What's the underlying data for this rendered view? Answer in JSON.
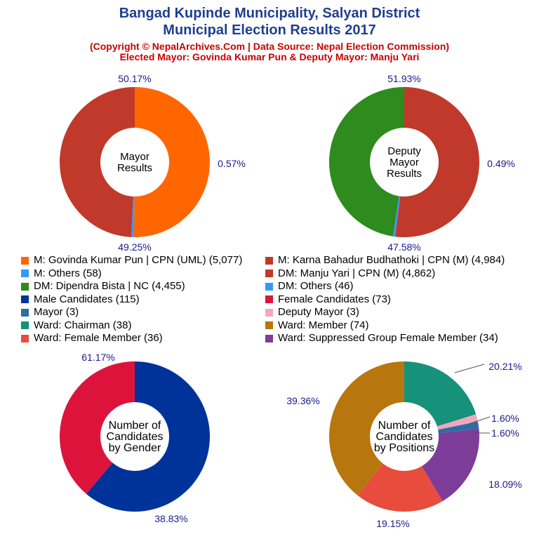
{
  "header": {
    "title_line1": "Bangad Kupinde Municipality, Salyan District",
    "title_line2": "Municipal Election Results 2017",
    "copyright": "(Copyright © NepalArchives.Com | Data Source: Nepal Election Commission)",
    "elected": "Elected Mayor: Govinda Kumar Pun & Deputy Mayor: Manju Yari"
  },
  "legend": [
    {
      "label": "M: Govinda Kumar Pun | CPN (UML) (5,077)",
      "color": "#ff6600"
    },
    {
      "label": "M: Karna Bahadur Budhathoki | CPN (M) (4,984)",
      "color": "#c0392b"
    },
    {
      "label": "M: Others (58)",
      "color": "#3399ff"
    },
    {
      "label": "DM: Manju Yari | CPN (M) (4,862)",
      "color": "#c0392b"
    },
    {
      "label": "DM: Dipendra Bista | NC (4,455)",
      "color": "#2e8b1e"
    },
    {
      "label": "DM: Others (46)",
      "color": "#3399ff"
    },
    {
      "label": "Male Candidates (115)",
      "color": "#003399"
    },
    {
      "label": "Female Candidates (73)",
      "color": "#dc143c"
    },
    {
      "label": "Mayor (3)",
      "color": "#2e6da4"
    },
    {
      "label": "Deputy Mayor (3)",
      "color": "#f4a6c0"
    },
    {
      "label": "Ward: Chairman (38)",
      "color": "#16917a"
    },
    {
      "label": "Ward: Member (74)",
      "color": "#b8760e"
    },
    {
      "label": "Ward: Female Member (36)",
      "color": "#e74c3c"
    },
    {
      "label": "Ward: Suppressed Group Female Member (34)",
      "color": "#7d3c98"
    }
  ],
  "chart_data": [
    {
      "type": "pie",
      "title": "Mayor Results",
      "center_label": [
        "Mayor",
        "Results"
      ],
      "slices": [
        {
          "value": 5077,
          "label": "50.17%",
          "color": "#ff6600"
        },
        {
          "value": 58,
          "label": "0.57%",
          "color": "#3399ff"
        },
        {
          "value": 4984,
          "label": "49.25%",
          "color": "#c0392b"
        }
      ]
    },
    {
      "type": "pie",
      "title": "Deputy Mayor Results",
      "center_label": [
        "Deputy",
        "Mayor",
        "Results"
      ],
      "slices": [
        {
          "value": 4862,
          "label": "51.93%",
          "color": "#c0392b"
        },
        {
          "value": 46,
          "label": "0.49%",
          "color": "#3399ff"
        },
        {
          "value": 4455,
          "label": "47.58%",
          "color": "#2e8b1e"
        }
      ]
    },
    {
      "type": "pie",
      "title": "Number of Candidates by Gender",
      "center_label": [
        "Number of",
        "Candidates",
        "by Gender"
      ],
      "slices": [
        {
          "value": 115,
          "label": "61.17%",
          "color": "#003399"
        },
        {
          "value": 73,
          "label": "38.83%",
          "color": "#dc143c"
        }
      ]
    },
    {
      "type": "pie",
      "title": "Number of Candidates by Positions",
      "center_label": [
        "Number of",
        "Candidates",
        "by Positions"
      ],
      "slices": [
        {
          "value": 38,
          "label": "20.21%",
          "color": "#16917a"
        },
        {
          "value": 3,
          "label": "1.60%",
          "color": "#f4a6c0"
        },
        {
          "value": 3,
          "label": "1.60%",
          "color": "#2e6da4"
        },
        {
          "value": 34,
          "label": "18.09%",
          "color": "#7d3c98"
        },
        {
          "value": 36,
          "label": "19.15%",
          "color": "#e74c3c"
        },
        {
          "value": 74,
          "label": "39.36%",
          "color": "#b8760e"
        }
      ]
    }
  ]
}
